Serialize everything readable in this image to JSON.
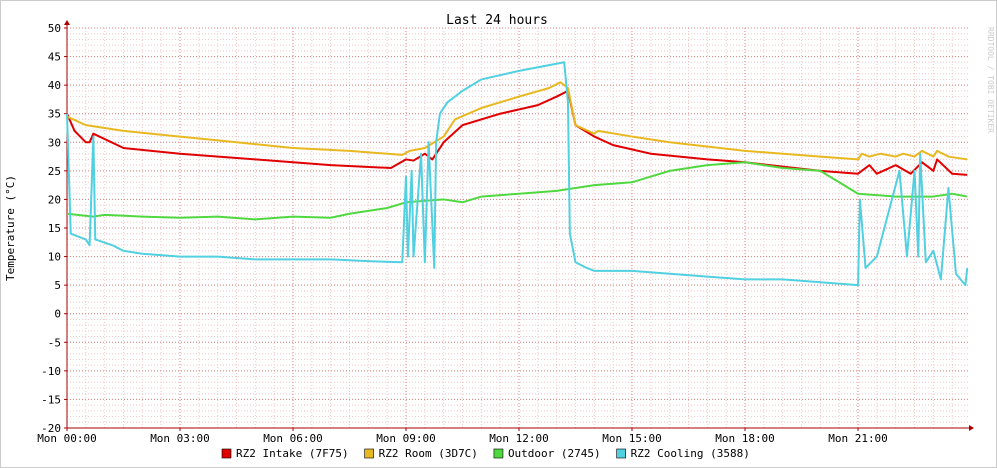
{
  "chart_data": {
    "type": "line",
    "title": "Last 24 hours",
    "y_label": "Temperature (°C)",
    "watermark": "RRDTOOL / TOBI OETIKER",
    "xlim": [
      0,
      23.92
    ],
    "ylim": [
      -20,
      50
    ],
    "xticks": [
      {
        "value": 0,
        "label": "Mon 00:00"
      },
      {
        "value": 3,
        "label": "Mon 03:00"
      },
      {
        "value": 6,
        "label": "Mon 06:00"
      },
      {
        "value": 9,
        "label": "Mon 09:00"
      },
      {
        "value": 12,
        "label": "Mon 12:00"
      },
      {
        "value": 15,
        "label": "Mon 15:00"
      },
      {
        "value": 18,
        "label": "Mon 18:00"
      },
      {
        "value": 21,
        "label": "Mon 21:00"
      }
    ],
    "yticks": [
      -20,
      -15,
      -10,
      -5,
      0,
      5,
      10,
      15,
      20,
      25,
      30,
      35,
      40,
      45,
      50
    ],
    "grid": true,
    "series": [
      {
        "name": "RZ2 Intake (7F75)",
        "color": "#e00000",
        "x": [
          0,
          0.2,
          0.5,
          0.6,
          0.7,
          1.5,
          3,
          5,
          6,
          7,
          8.6,
          9,
          9.2,
          9.5,
          9.7,
          10,
          10.5,
          11.5,
          12.5,
          13,
          13.3,
          13.5,
          14,
          14.5,
          15.5,
          17,
          18,
          20,
          21,
          21.3,
          21.5,
          22,
          22.4,
          22.7,
          23,
          23.1,
          23.5,
          23.9
        ],
        "values": [
          35,
          32,
          30,
          30,
          31.5,
          29,
          28,
          27,
          26.5,
          26,
          25.5,
          27,
          26.8,
          28,
          27,
          30,
          33,
          35,
          36.5,
          38,
          39,
          33,
          31,
          29.5,
          28,
          27,
          26.5,
          25,
          24.5,
          26,
          24.5,
          26,
          24.5,
          26.5,
          25,
          27,
          24.5,
          24.3
        ]
      },
      {
        "name": "RZ2 Room (3D7C)",
        "color": "#e8b820",
        "x": [
          0,
          0.5,
          0.7,
          1.5,
          3,
          4.5,
          6,
          7.5,
          8.9,
          9.1,
          9.5,
          10,
          10.3,
          11,
          12,
          12.8,
          13.1,
          13.3,
          13.5,
          14,
          14.1,
          15,
          16,
          18,
          20,
          21,
          21.1,
          21.3,
          21.6,
          22,
          22.2,
          22.5,
          22.7,
          23,
          23.1,
          23.4,
          23.9
        ],
        "values": [
          34.5,
          33,
          32.8,
          32,
          31,
          30,
          29,
          28.5,
          27.8,
          28.5,
          29,
          31,
          34,
          36,
          38,
          39.5,
          40.5,
          39.5,
          33,
          31.5,
          32,
          31,
          30,
          28.5,
          27.5,
          27,
          28,
          27.5,
          28,
          27.5,
          28,
          27.5,
          28.5,
          27.5,
          28.5,
          27.5,
          27
        ]
      },
      {
        "name": "Outdoor (2745)",
        "color": "#50d840",
        "x": [
          0,
          0.7,
          1,
          2,
          3,
          4,
          5,
          6,
          7,
          7.5,
          8,
          8.5,
          9,
          10,
          10.5,
          11,
          12,
          13,
          13.5,
          14,
          15,
          15.5,
          16,
          17,
          18,
          18.5,
          19,
          20,
          20.5,
          21,
          22,
          23,
          23.5,
          23.9
        ],
        "values": [
          17.5,
          17,
          17.3,
          17,
          16.8,
          17,
          16.5,
          17,
          16.8,
          17.5,
          18,
          18.5,
          19.5,
          20,
          19.5,
          20.5,
          21,
          21.5,
          22,
          22.5,
          23,
          24,
          25,
          26,
          26.5,
          26,
          25.5,
          25,
          23,
          21,
          20.5,
          20.5,
          21,
          20.5
        ]
      },
      {
        "name": "RZ2 Cooling (3588)",
        "color": "#50d0e0",
        "x": [
          0,
          0.1,
          0.5,
          0.6,
          0.7,
          0.75,
          1.2,
          1.5,
          2,
          3,
          4,
          5,
          6,
          7,
          8,
          8.9,
          9,
          9.05,
          9.15,
          9.2,
          9.4,
          9.5,
          9.6,
          9.75,
          9.8,
          9.9,
          10.1,
          10.5,
          11,
          12,
          12.8,
          13.2,
          13.3,
          13.35,
          13.5,
          13.8,
          14,
          15,
          16,
          17,
          18,
          19,
          20,
          21,
          21.05,
          21.2,
          21.5,
          22.1,
          22.3,
          22.5,
          22.6,
          22.65,
          22.8,
          23,
          23.2,
          23.4,
          23.6,
          23.85,
          23.9
        ],
        "values": [
          35,
          14,
          13,
          12,
          31,
          13,
          12,
          11,
          10.5,
          10,
          10,
          9.5,
          9.5,
          9.5,
          9.2,
          9,
          24,
          10,
          25,
          10,
          28,
          9,
          30,
          8,
          30,
          35,
          37,
          39,
          41,
          42.5,
          43.5,
          44,
          37,
          14,
          9,
          8,
          7.5,
          7.5,
          7,
          6.5,
          6,
          6,
          5.5,
          5,
          20,
          8,
          10,
          25,
          10,
          25,
          10,
          28,
          9,
          11,
          6,
          22,
          7,
          5,
          8
        ]
      }
    ]
  }
}
